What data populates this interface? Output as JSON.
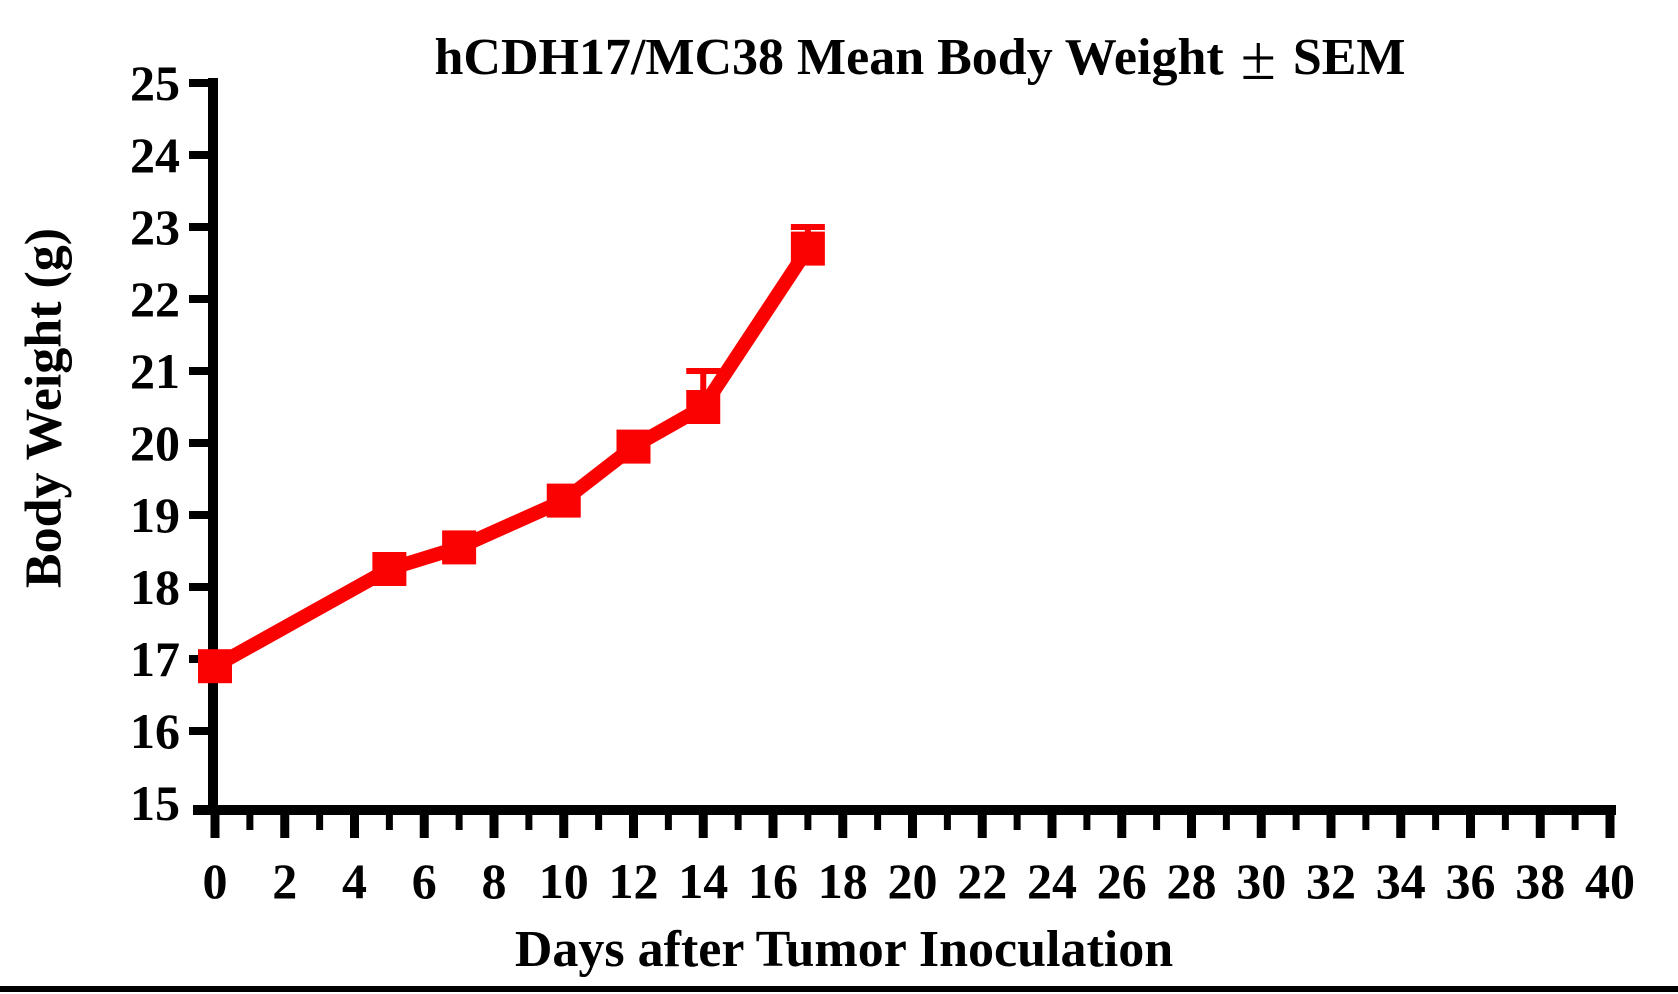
{
  "page": {
    "background_color": "#FFFFFF",
    "text_color": "#000000"
  },
  "chart_data": {
    "type": "line",
    "title": "hCDH17/MC38 Mean Body Weight ± SEM",
    "title_parts": {
      "prefix": "hCDH17/MC38 Mean Body Weight",
      "plusminus": "±",
      "suffix": "SEM"
    },
    "xlabel": "Days after Tumor Inoculation",
    "ylabel": "Body Weight (g)",
    "xlim": [
      0,
      40
    ],
    "ylim": [
      15,
      25
    ],
    "x_major_tick_step": 2,
    "x_minor_tick_step": 1,
    "y_tick_step": 1,
    "x_tick_labels": [
      "0",
      "2",
      "4",
      "6",
      "8",
      "10",
      "12",
      "14",
      "16",
      "18",
      "20",
      "22",
      "24",
      "26",
      "28",
      "30",
      "32",
      "34",
      "36",
      "38",
      "40"
    ],
    "y_tick_labels": [
      "15",
      "16",
      "17",
      "18",
      "19",
      "20",
      "21",
      "22",
      "23",
      "24",
      "25"
    ],
    "grid": false,
    "legend": false,
    "axis_color": "#000000",
    "series": [
      {
        "name": "hCDH17/MC38",
        "color": "#FA0202",
        "marker": "square",
        "x": [
          0,
          5,
          7,
          10,
          12,
          14,
          17
        ],
        "y": [
          16.9,
          18.25,
          18.55,
          19.2,
          19.95,
          20.5,
          22.7
        ],
        "sem_upper": [
          null,
          null,
          null,
          null,
          null,
          0.5,
          0.3
        ]
      }
    ]
  }
}
